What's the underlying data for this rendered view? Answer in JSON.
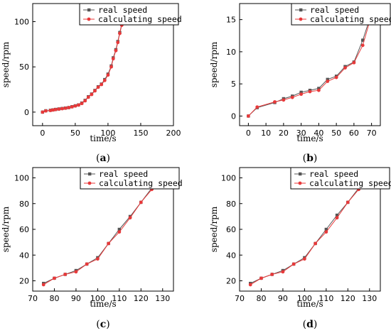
{
  "colors": {
    "real": "#555555",
    "calc": "#e8393a",
    "axis": "#000000"
  },
  "chart_data": [
    {
      "type": "line",
      "panel_letter": "a",
      "xlabel": "time/s",
      "ylabel": "speed/rpm",
      "xlim": [
        -15,
        200
      ],
      "ylim": [
        -15,
        120
      ],
      "xticks": [
        0,
        50,
        100,
        150,
        200
      ],
      "yticks": [
        0,
        50,
        100
      ],
      "legend_position": "top-right",
      "series": [
        {
          "name": "real speed",
          "marker": "square",
          "x": [
            0,
            5,
            12,
            16,
            20,
            25,
            30,
            35,
            40,
            45,
            50,
            55,
            60,
            65,
            70,
            75,
            80,
            85,
            90,
            95,
            100,
            105,
            108,
            112,
            115,
            118,
            121,
            125,
            130,
            134,
            138,
            142,
            146,
            150,
            155,
            160,
            165,
            170,
            175,
            180
          ],
          "y": [
            0,
            1.5,
            2,
            2.5,
            3,
            3.5,
            4,
            4.5,
            5,
            6,
            7,
            8,
            10,
            13,
            17,
            20,
            24,
            28,
            31,
            36,
            42,
            51,
            60,
            69,
            78,
            88,
            97,
            103,
            106,
            107,
            107.5,
            108,
            108,
            108,
            108,
            108,
            108,
            108,
            108,
            108
          ]
        },
        {
          "name": "calculating speed",
          "marker": "circle",
          "x": [
            0,
            5,
            12,
            16,
            20,
            25,
            30,
            35,
            40,
            45,
            50,
            55,
            60,
            65,
            70,
            75,
            80,
            85,
            90,
            95,
            100,
            105,
            108,
            112,
            115,
            118,
            121,
            125,
            130,
            134,
            138,
            142,
            146,
            150,
            155,
            160,
            165,
            170,
            175,
            180
          ],
          "y": [
            0,
            1.3,
            1.8,
            2.3,
            2.8,
            3.3,
            3.8,
            4.3,
            5,
            5.8,
            6.8,
            7.8,
            9.5,
            12.5,
            16.5,
            19.5,
            23.5,
            27.5,
            30.5,
            35,
            41,
            50,
            59,
            68,
            77,
            87,
            96,
            102.5,
            105.5,
            106.5,
            107,
            107.5,
            108,
            108,
            108,
            108,
            108,
            108,
            108,
            108
          ]
        }
      ]
    },
    {
      "type": "line",
      "panel_letter": "b",
      "xlabel": "time/s",
      "ylabel": "speed/rpm",
      "xlim": [
        -5,
        75
      ],
      "ylim": [
        -1.5,
        17.5
      ],
      "xticks": [
        0,
        10,
        20,
        30,
        40,
        50,
        60,
        70
      ],
      "yticks": [
        0,
        5,
        10,
        15
      ],
      "legend_position": "top-right",
      "series": [
        {
          "name": "real speed",
          "marker": "square",
          "x": [
            0,
            5,
            15,
            20,
            25,
            30,
            35,
            40,
            45,
            50,
            55,
            60,
            65,
            70
          ],
          "y": [
            0,
            1.3,
            2.1,
            2.7,
            3.1,
            3.7,
            4.0,
            4.3,
            5.7,
            6.2,
            7.7,
            8.4,
            11.8,
            16.0
          ]
        },
        {
          "name": "calculating speed",
          "marker": "circle",
          "x": [
            0,
            5,
            15,
            20,
            25,
            30,
            35,
            40,
            45,
            50,
            55,
            60,
            65,
            70
          ],
          "y": [
            0,
            1.4,
            2.2,
            2.5,
            2.9,
            3.4,
            3.8,
            4.0,
            5.4,
            6.0,
            7.5,
            8.3,
            11.0,
            15.7
          ]
        }
      ]
    },
    {
      "type": "line",
      "panel_letter": "c",
      "xlabel": "time/s",
      "ylabel": "speed/rpm",
      "xlim": [
        70,
        135
      ],
      "ylim": [
        12,
        108
      ],
      "xticks": [
        70,
        80,
        90,
        100,
        110,
        120,
        130
      ],
      "yticks": [
        20,
        40,
        60,
        80,
        100
      ],
      "legend_position": "top-right",
      "series": [
        {
          "name": "real speed",
          "marker": "square",
          "x": [
            75,
            80,
            85,
            90,
            95,
            100,
            105,
            110,
            115,
            120,
            125,
            130
          ],
          "y": [
            18,
            22,
            25,
            28,
            33,
            38,
            49,
            60,
            70,
            81,
            92,
            102
          ]
        },
        {
          "name": "calculating speed",
          "marker": "circle",
          "x": [
            75,
            80,
            85,
            90,
            95,
            100,
            105,
            110,
            115,
            120,
            125,
            130
          ],
          "y": [
            17,
            22,
            25,
            27,
            33,
            37,
            49,
            58,
            69,
            81,
            91,
            101
          ]
        }
      ]
    },
    {
      "type": "line",
      "panel_letter": "d",
      "xlabel": "time/s",
      "ylabel": "speed/rpm",
      "xlim": [
        70,
        135
      ],
      "ylim": [
        12,
        108
      ],
      "xticks": [
        70,
        80,
        90,
        100,
        110,
        120,
        130
      ],
      "yticks": [
        20,
        40,
        60,
        80,
        100
      ],
      "legend_position": "top-right",
      "series": [
        {
          "name": "real speed",
          "marker": "square",
          "x": [
            75,
            80,
            85,
            90,
            95,
            100,
            105,
            110,
            115,
            120,
            125,
            130
          ],
          "y": [
            18,
            22,
            25,
            28,
            33,
            38,
            49,
            60,
            71,
            81,
            92,
            102
          ]
        },
        {
          "name": "calculating speed",
          "marker": "circle",
          "x": [
            75,
            80,
            85,
            90,
            95,
            100,
            105,
            110,
            115,
            120,
            125,
            130
          ],
          "y": [
            17,
            22,
            25,
            27,
            33,
            37,
            49,
            58,
            69,
            81,
            91,
            101
          ]
        }
      ]
    }
  ]
}
